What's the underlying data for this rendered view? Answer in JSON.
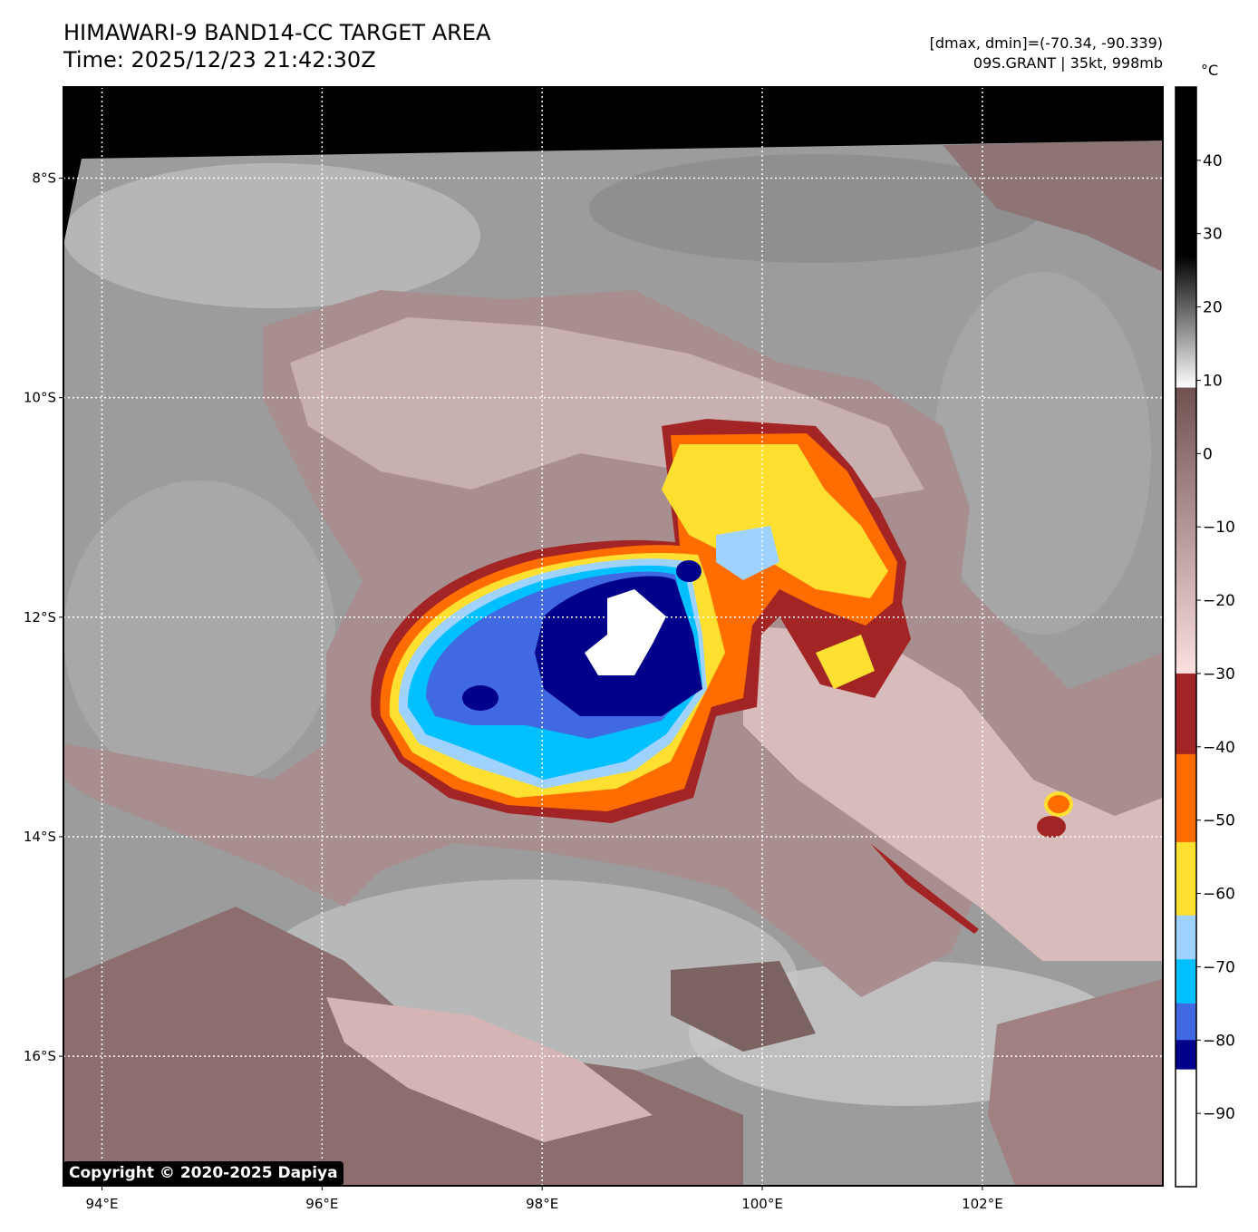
{
  "title": {
    "line1": "HIMAWARI-9 BAND14-CC TARGET AREA",
    "line2": "Time: 2025/12/23 21:42:30Z"
  },
  "info": {
    "dmax_dmin": "[dmax, dmin]=(-70.34, -90.339)",
    "storm": "09S.GRANT | 35kt, 998mb"
  },
  "map": {
    "lon_labels": [
      "94°E",
      "96°E",
      "98°E",
      "100°E",
      "102°E"
    ],
    "lon_values": [
      94,
      96,
      98,
      100,
      102
    ],
    "lat_labels": [
      "8°S",
      "10°S",
      "12°S",
      "14°S",
      "16°S"
    ],
    "lat_values": [
      -8,
      -10,
      -12,
      -14,
      -16
    ],
    "lon_range": [
      93.65,
      103.64
    ],
    "lat_range": [
      -7.17,
      -17.18
    ],
    "copyright": "Copyright © 2020-2025 Dapiya"
  },
  "colorbar": {
    "unit": "°C",
    "range": [
      -100,
      50
    ],
    "ticks": [
      40,
      30,
      20,
      10,
      0,
      -10,
      -20,
      -30,
      -40,
      -50,
      -60,
      -70,
      -80,
      -90
    ],
    "tick_labels": [
      "40",
      "30",
      "20",
      "10",
      "0",
      "−10",
      "−20",
      "−30",
      "−40",
      "−50",
      "−60",
      "−70",
      "−80",
      "−90"
    ],
    "segments": [
      {
        "from": 27,
        "to": 50,
        "color": "#000000"
      },
      {
        "from": 9,
        "to": 27,
        "color_top": "#000000",
        "color_bottom": "#ffffff",
        "gradient": true
      },
      {
        "from": -30,
        "to": 9,
        "color_top": "#6f5150",
        "color_bottom": "#fbe0e0",
        "gradient": true
      },
      {
        "from": -41,
        "to": -30,
        "color": "#a32424"
      },
      {
        "from": -53,
        "to": -41,
        "color": "#ff6c00"
      },
      {
        "from": -63,
        "to": -53,
        "color": "#ffe030"
      },
      {
        "from": -69,
        "to": -63,
        "color": "#a0d2ff"
      },
      {
        "from": -75,
        "to": -69,
        "color": "#00c0ff"
      },
      {
        "from": -80,
        "to": -75,
        "color": "#4169e1"
      },
      {
        "from": -84,
        "to": -80,
        "color": "#00008b"
      },
      {
        "from": -100,
        "to": -84,
        "color": "#ffffff"
      }
    ]
  }
}
